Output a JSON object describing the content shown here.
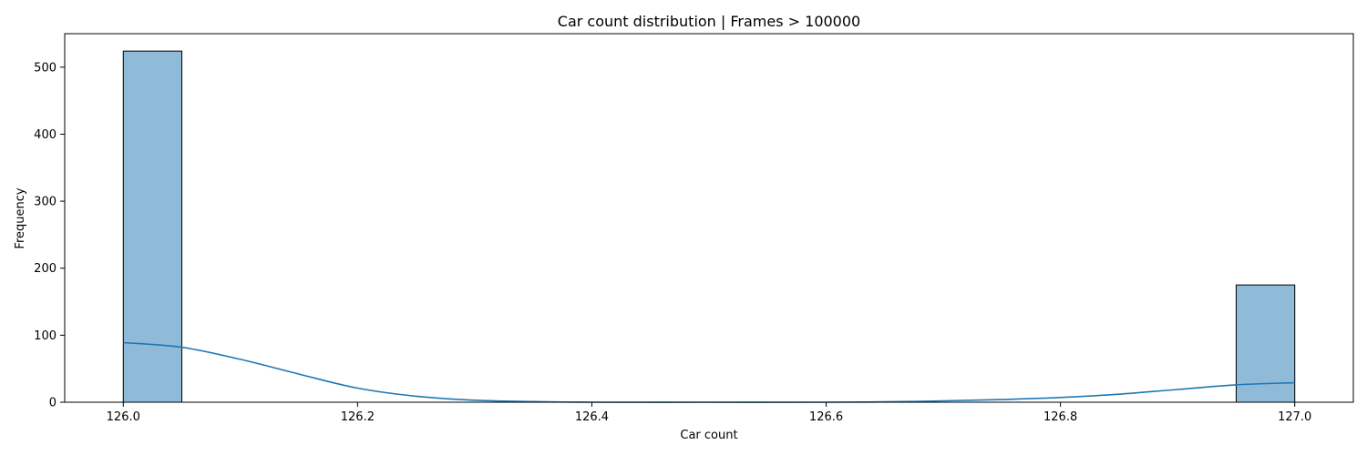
{
  "chart_data": {
    "type": "bar",
    "title": "Car count distribution | Frames > 100000",
    "xlabel": "Car count",
    "ylabel": "Frequency",
    "xlim": [
      125.95,
      127.05
    ],
    "ylim": [
      0,
      550
    ],
    "xticks": [
      126.0,
      126.2,
      126.4,
      126.6,
      126.8,
      127.0
    ],
    "xtick_labels": [
      "126.0",
      "126.2",
      "126.4",
      "126.6",
      "126.8",
      "127.0"
    ],
    "yticks": [
      0,
      100,
      200,
      300,
      400,
      500
    ],
    "ytick_labels": [
      "0",
      "100",
      "200",
      "300",
      "400",
      "500"
    ],
    "bars": [
      {
        "x0": 126.0,
        "x1": 126.05,
        "value": 524
      },
      {
        "x0": 126.95,
        "x1": 127.0,
        "value": 175
      }
    ],
    "kde": {
      "x": [
        126.0,
        126.05,
        126.1,
        126.15,
        126.2,
        126.25,
        126.3,
        126.35,
        126.4,
        126.5,
        126.6,
        126.65,
        126.7,
        126.75,
        126.8,
        126.85,
        126.9,
        126.95,
        127.0
      ],
      "y": [
        89,
        82,
        64,
        42,
        21,
        9,
        3,
        1,
        0,
        0,
        0,
        0.5,
        2,
        4,
        7,
        12,
        19,
        26,
        29
      ]
    },
    "grid": false,
    "legend": "none",
    "colors": {
      "bar_fill": "#8fbbd9",
      "bar_edge": "#000000",
      "kde_line": "#1f77b4"
    }
  }
}
